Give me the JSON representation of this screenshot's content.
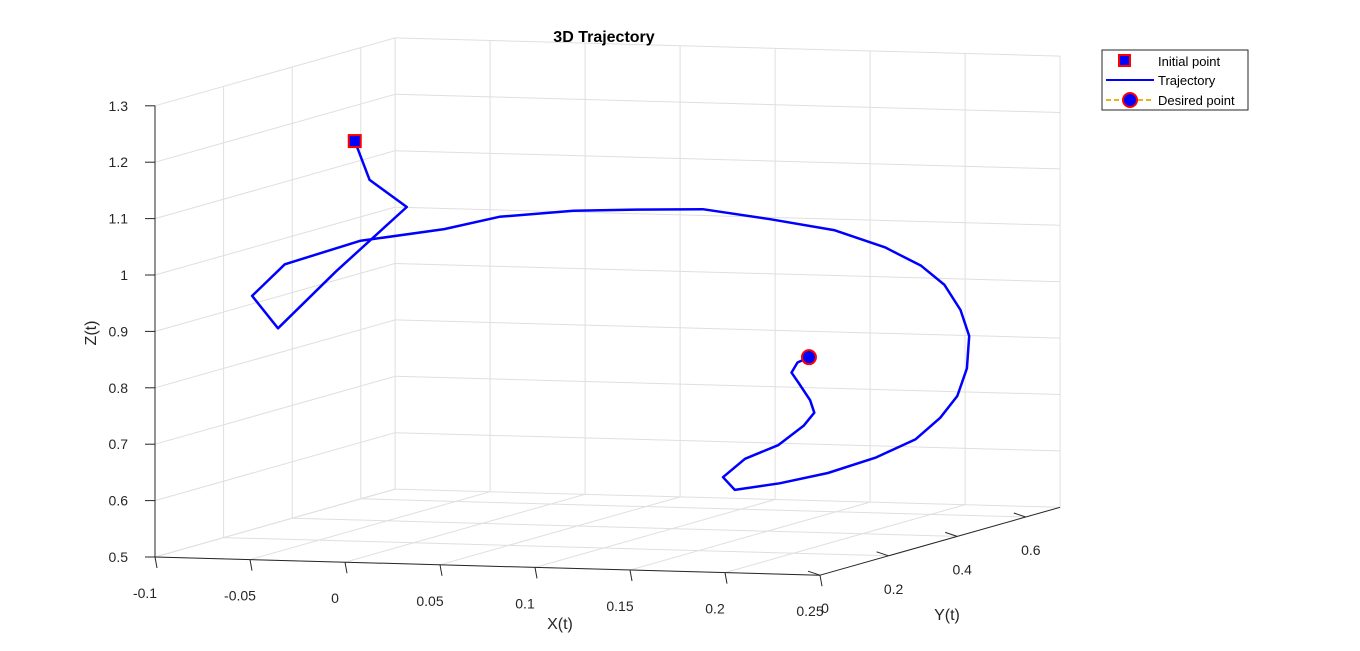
{
  "chart_data": {
    "type": "line",
    "title": "3D Trajectory",
    "xlabel": "X(t)",
    "ylabel": "Y(t)",
    "zlabel": "Z(t)",
    "xlim": [
      -0.1,
      0.25
    ],
    "ylim": [
      0,
      0.7
    ],
    "zlim": [
      0.5,
      1.3
    ],
    "xticks": [
      "-0.1",
      "-0.05",
      "0",
      "0.05",
      "0.1",
      "0.15",
      "0.2",
      "0.25"
    ],
    "yticks": [
      "0",
      "0.2",
      "0.4",
      "0.6"
    ],
    "zticks": [
      "0.5",
      "0.6",
      "0.7",
      "0.8",
      "0.9",
      "1",
      "1.1",
      "1.2",
      "1.3"
    ],
    "grid": true,
    "legend_position": "top-right",
    "colors": {
      "trajectory": "#0000ff",
      "marker_edge": "#ff0000",
      "marker_face": "#0000ff",
      "desired_line": "#edb120"
    },
    "series": [
      {
        "name": "Initial point",
        "style": "square-marker",
        "x": [
          -0.04
        ],
        "y": [
          0.25
        ],
        "z": [
          1.2
        ]
      },
      {
        "name": "Trajectory",
        "style": "line",
        "x": [
          -0.04,
          -0.034,
          -0.018,
          -0.048,
          -0.075,
          -0.085,
          -0.075,
          -0.05,
          -0.02,
          0.0,
          0.03,
          0.05,
          0.08,
          0.11,
          0.14,
          0.165,
          0.185,
          0.2,
          0.212,
          0.222,
          0.228,
          0.232,
          0.232,
          0.228,
          0.216,
          0.2,
          0.18,
          0.16,
          0.152,
          0.16,
          0.172,
          0.18,
          0.182,
          0.178,
          0.172,
          0.17,
          0.175,
          0.181
        ],
        "y": [
          0.25,
          0.26,
          0.28,
          0.24,
          0.22,
          0.2,
          0.24,
          0.32,
          0.4,
          0.45,
          0.5,
          0.55,
          0.6,
          0.63,
          0.65,
          0.66,
          0.655,
          0.64,
          0.62,
          0.59,
          0.55,
          0.5,
          0.45,
          0.4,
          0.35,
          0.3,
          0.27,
          0.25,
          0.26,
          0.28,
          0.31,
          0.34,
          0.36,
          0.37,
          0.37,
          0.36,
          0.35,
          0.35
        ],
        "z": [
          1.2,
          1.13,
          1.08,
          0.97,
          0.87,
          0.93,
          0.98,
          1.01,
          1.02,
          1.035,
          1.04,
          1.035,
          1.03,
          1.01,
          0.99,
          0.96,
          0.93,
          0.9,
          0.86,
          0.82,
          0.77,
          0.73,
          0.7,
          0.67,
          0.645,
          0.625,
          0.61,
          0.6,
          0.62,
          0.65,
          0.67,
          0.7,
          0.72,
          0.74,
          0.77,
          0.79,
          0.81,
          0.82
        ]
      },
      {
        "name": "Desired point",
        "style": "circle-marker",
        "x": [
          0.181
        ],
        "y": [
          0.35
        ],
        "z": [
          0.82
        ]
      }
    ]
  }
}
